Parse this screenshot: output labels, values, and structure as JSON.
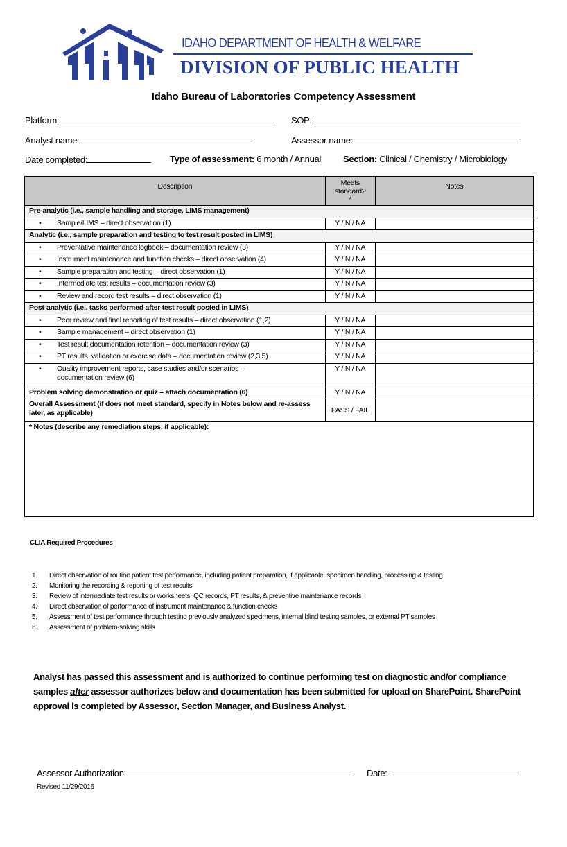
{
  "logo": {
    "department": "IDAHO DEPARTMENT OF HEALTH & WELFARE",
    "division": "DIVISION OF PUBLIC HEALTH",
    "brand_color": "#2b3f94"
  },
  "title": "Idaho Bureau of Laboratories Competency Assessment",
  "fields": {
    "platform": "Platform:",
    "sop": "SOP:",
    "analyst_name": "Analyst name:",
    "assessor_name": "Assessor name:",
    "date_completed": "Date completed:",
    "type_label": "Type of assessment:",
    "type_options": "6 month / Annual",
    "section_label": "Section:",
    "section_options": "Clinical / Chemistry / Microbiology"
  },
  "table": {
    "headers": {
      "description": "Description",
      "meets": "Meets standard?",
      "meets_mark": "*",
      "notes": "Notes"
    },
    "sections": [
      {
        "title": "Pre-analytic (i.e., sample handling and storage, LIMS management)",
        "items": [
          {
            "text": "Sample/LIMS – direct observation (1)",
            "value": "Y / N / NA"
          }
        ]
      },
      {
        "title": "Analytic (i.e., sample preparation and testing to test result posted in LIMS)",
        "items": [
          {
            "text": "Preventative maintenance logbook – documentation review (3)",
            "value": "Y / N / NA"
          },
          {
            "text": "Instrument maintenance and function checks – direct observation (4)",
            "value": "Y / N / NA"
          },
          {
            "text": "Sample preparation and testing – direct observation (1)",
            "value": "Y / N / NA"
          },
          {
            "text": "Intermediate test results – documentation review (3)",
            "value": "Y / N / NA"
          },
          {
            "text": "Review and record test results – direct observation (1)",
            "value": "Y / N / NA"
          }
        ]
      },
      {
        "title": "Post-analytic (i.e., tasks performed after test result posted in LIMS)",
        "items": [
          {
            "text": "Peer review and final reporting of test results – direct observation (1,2)",
            "value": "Y / N / NA"
          },
          {
            "text": "Sample management – direct observation (1)",
            "value": "Y / N / NA"
          },
          {
            "text": "Test result documentation retention – documentation review (3)",
            "value": "Y / N / NA"
          },
          {
            "text": "PT results, validation or exercise data – documentation review (2,3,5)",
            "value": "Y / N / NA"
          },
          {
            "text": "Quality improvement reports, case studies and/or scenarios – documentation review (6)",
            "value": "Y / N / NA"
          }
        ]
      }
    ],
    "problem_solving": {
      "text": "Problem solving demonstration or quiz – attach documentation (6)",
      "value": "Y / N / NA"
    },
    "overall": {
      "text": "Overall Assessment (if does not meet standard, specify in Notes below and re-assess later, as applicable)",
      "value": "PASS / FAIL"
    },
    "notes_label": "* Notes (describe any remediation steps, if applicable):"
  },
  "clia": {
    "title": "CLIA Required Procedures",
    "items": [
      "Direct observation of routine patient test performance, including patient preparation, if applicable, specimen handling, processing & testing",
      "Monitoring the recording & reporting of test results",
      "Review of intermediate test results or worksheets, QC records, PT results, & preventive maintenance records",
      "Direct observation of performance of instrument maintenance & function checks",
      "Assessment of test performance through testing previously analyzed specimens, internal blind testing samples, or external PT samples",
      "Assessment of problem-solving skills"
    ]
  },
  "authorization": {
    "part1": "Analyst has passed this assessment and is authorized to continue performing test on diagnostic and/or compliance samples",
    "emphasis": "after",
    "part2": "assessor authorizes below and documentation has been submitted for upload on SharePoint. SharePoint approval is completed by Assessor, Section Manager, and Business Analyst.",
    "assessor_label": "Assessor Authorization:",
    "date_label": "Date:"
  },
  "revised": "Revised 11/29/2016"
}
